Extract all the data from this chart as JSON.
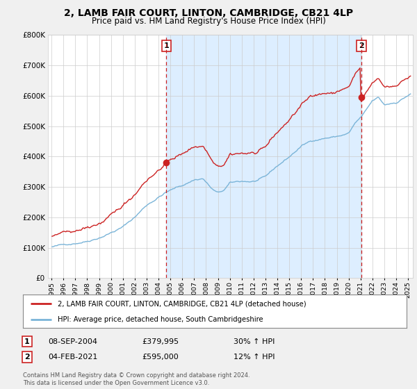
{
  "title": "2, LAMB FAIR COURT, LINTON, CAMBRIDGE, CB21 4LP",
  "subtitle": "Price paid vs. HM Land Registry's House Price Index (HPI)",
  "legend_line1": "2, LAMB FAIR COURT, LINTON, CAMBRIDGE, CB21 4LP (detached house)",
  "legend_line2": "HPI: Average price, detached house, South Cambridgeshire",
  "transaction1_date": "08-SEP-2004",
  "transaction1_price": "£379,995",
  "transaction1_hpi": "30% ↑ HPI",
  "transaction2_date": "04-FEB-2021",
  "transaction2_price": "£595,000",
  "transaction2_hpi": "12% ↑ HPI",
  "footer": "Contains HM Land Registry data © Crown copyright and database right 2024.\nThis data is licensed under the Open Government Licence v3.0.",
  "hpi_color": "#7ab4d8",
  "price_color": "#cc2222",
  "marker1_year": 2004.67,
  "marker2_year": 2021.08,
  "marker1_price": 379995,
  "marker2_price": 595000,
  "ylim_min": 0,
  "ylim_max": 800000,
  "background_color": "#f0f0f0",
  "plot_bg_color": "#ffffff",
  "shade_color": "#ddeeff"
}
